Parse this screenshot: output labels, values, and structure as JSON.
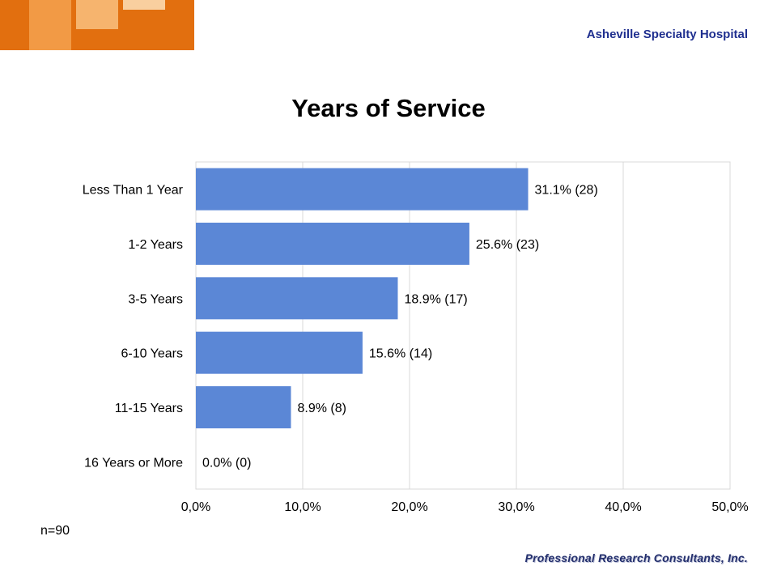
{
  "header": {
    "hospital_name": "Asheville Specialty Hospital"
  },
  "footer": {
    "sample_size": "n=90",
    "brand": "Professional Research Consultants, Inc."
  },
  "colors": {
    "bar": "#5b87d6",
    "brand_orange": "#e26f0f",
    "brand_blue": "#1f2f8f"
  },
  "chart_data": {
    "type": "bar",
    "orientation": "horizontal",
    "title": "Years of Service",
    "categories": [
      "Less Than 1 Year",
      "1-2 Years",
      "3-5 Years",
      "6-10 Years",
      "11-15 Years",
      "16 Years or More"
    ],
    "values": [
      31.1,
      25.6,
      18.9,
      15.6,
      8.9,
      0.0
    ],
    "data_labels": [
      "31.1% (28)",
      "25.6% (23)",
      "18.9% (17)",
      "15.6% (14)",
      "8.9% (8)",
      "0.0% (0)"
    ],
    "x_ticks": [
      "0,0%",
      "10,0%",
      "20,0%",
      "30,0%",
      "40,0%",
      "50,0%"
    ],
    "xlim": [
      0,
      50
    ],
    "grid": true,
    "xlabel": "",
    "ylabel": ""
  }
}
